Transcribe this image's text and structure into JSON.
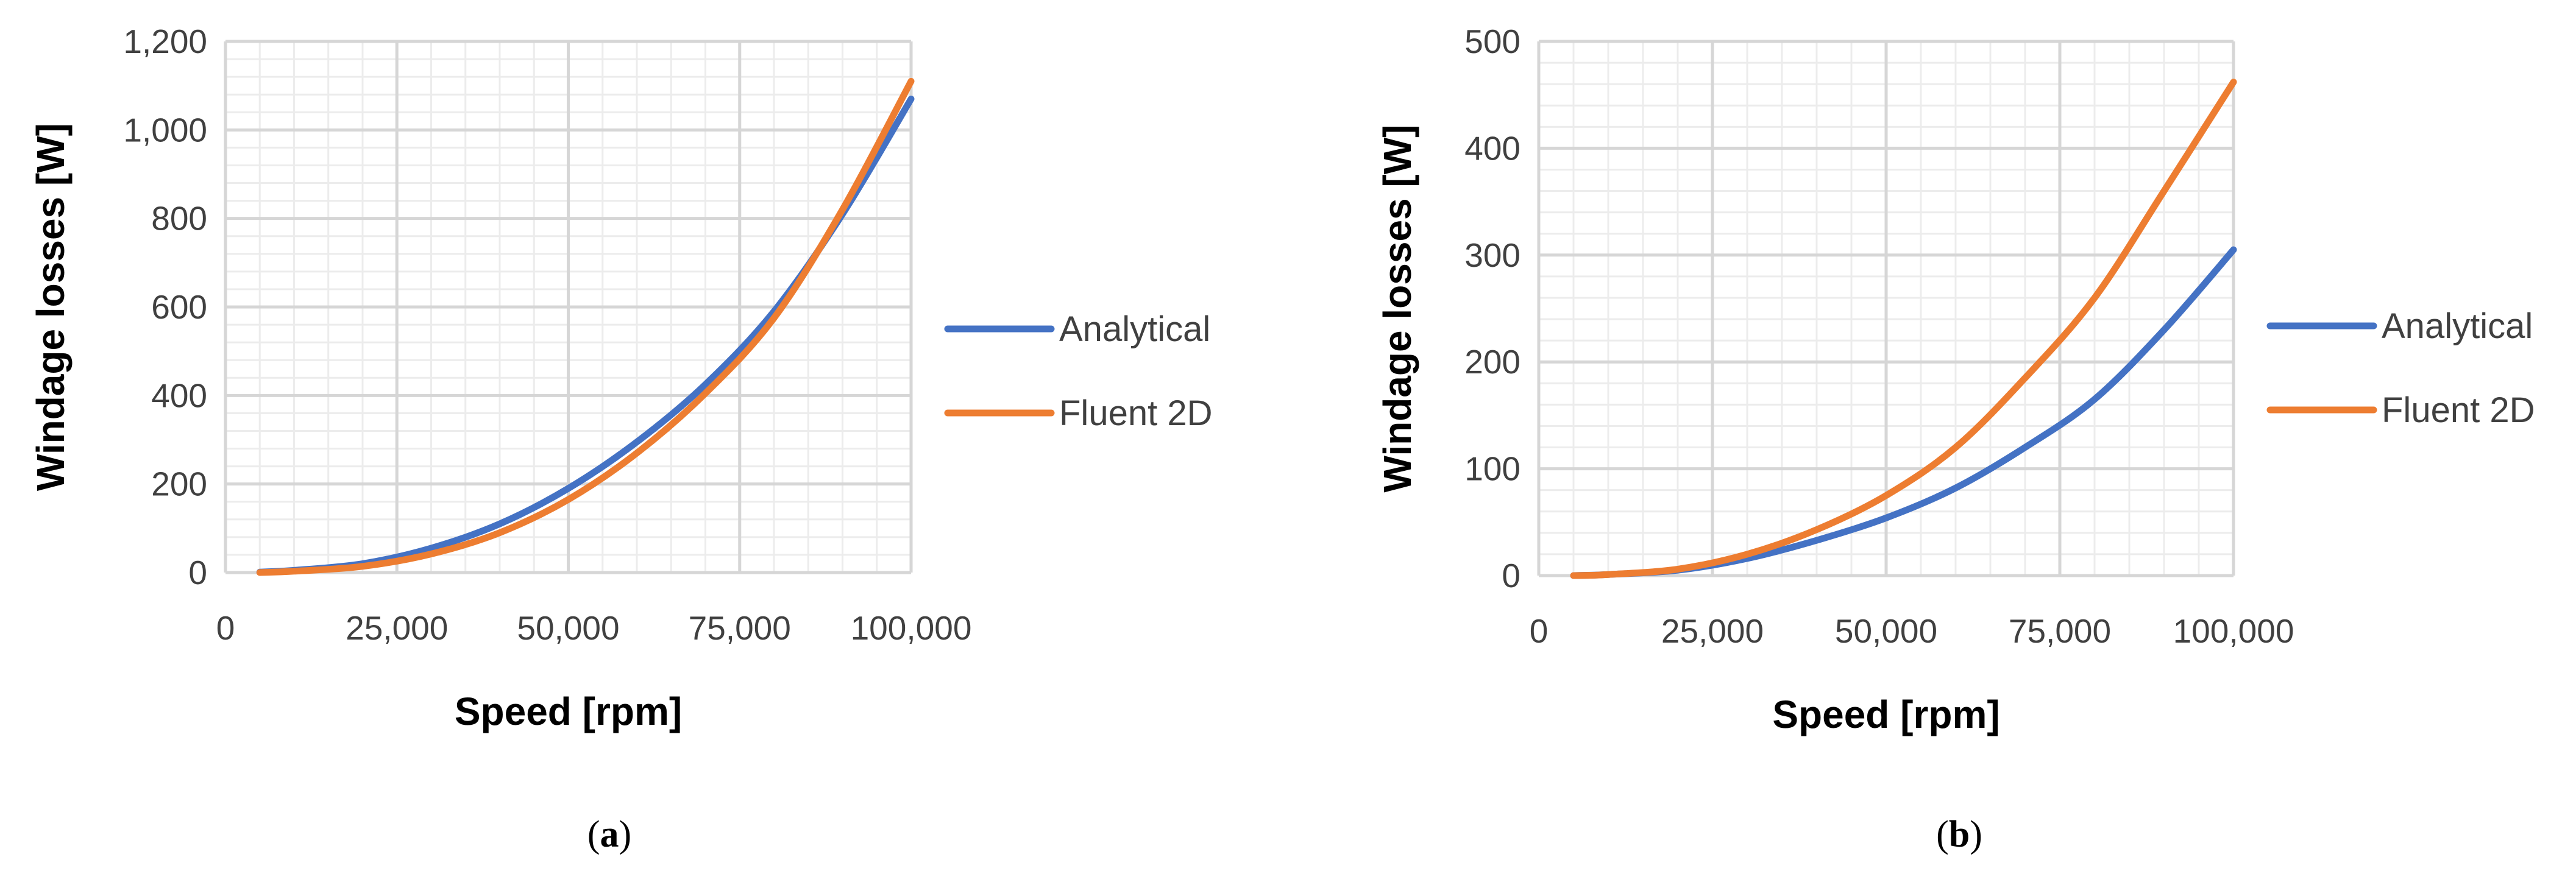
{
  "chart_data": [
    {
      "type": "line",
      "panel_label": "a",
      "xlabel": "Speed [rpm]",
      "ylabel": "Windage losses [W]",
      "xlim": [
        0,
        100000
      ],
      "ylim": [
        0,
        1200
      ],
      "xticks": [
        0,
        25000,
        50000,
        75000,
        100000
      ],
      "xtick_labels": [
        "0",
        "25,000",
        "50,000",
        "75,000",
        "100,000"
      ],
      "yticks": [
        0,
        200,
        400,
        600,
        800,
        1000,
        1200
      ],
      "ytick_labels": [
        "0",
        "200",
        "400",
        "600",
        "800",
        "1,000",
        "1,200"
      ],
      "grid": true,
      "legend_position": "right",
      "series": [
        {
          "name": "Analytical",
          "color": "#4472C4",
          "x": [
            5000,
            10000,
            20000,
            30000,
            40000,
            50000,
            60000,
            70000,
            80000,
            90000,
            100000
          ],
          "y": [
            1,
            5,
            20,
            55,
            110,
            190,
            295,
            425,
            590,
            810,
            1070
          ]
        },
        {
          "name": "Fluent 2D",
          "color": "#ED7D31",
          "x": [
            5000,
            10000,
            20000,
            30000,
            40000,
            50000,
            60000,
            70000,
            80000,
            90000,
            100000
          ],
          "y": [
            0,
            3,
            14,
            42,
            90,
            165,
            270,
            405,
            575,
            820,
            1110
          ]
        }
      ]
    },
    {
      "type": "line",
      "panel_label": "b",
      "xlabel": "Speed [rpm]",
      "ylabel": "Windage losses [W]",
      "xlim": [
        0,
        100000
      ],
      "ylim": [
        0,
        500
      ],
      "xticks": [
        0,
        25000,
        50000,
        75000,
        100000
      ],
      "xtick_labels": [
        "0",
        "25,000",
        "50,000",
        "75,000",
        "100,000"
      ],
      "yticks": [
        0,
        100,
        200,
        300,
        400,
        500
      ],
      "ytick_labels": [
        "0",
        "100",
        "200",
        "300",
        "400",
        "500"
      ],
      "grid": true,
      "legend_position": "right",
      "series": [
        {
          "name": "Analytical",
          "color": "#4472C4",
          "x": [
            5000,
            10000,
            20000,
            30000,
            40000,
            50000,
            60000,
            70000,
            80000,
            90000,
            100000
          ],
          "y": [
            0,
            1,
            5,
            16,
            33,
            54,
            82,
            120,
            165,
            230,
            305
          ]
        },
        {
          "name": "Fluent 2D",
          "color": "#ED7D31",
          "x": [
            5000,
            10000,
            20000,
            30000,
            40000,
            50000,
            60000,
            70000,
            80000,
            90000,
            100000
          ],
          "y": [
            0,
            1,
            6,
            20,
            43,
            75,
            120,
            185,
            260,
            360,
            462
          ]
        }
      ]
    }
  ]
}
